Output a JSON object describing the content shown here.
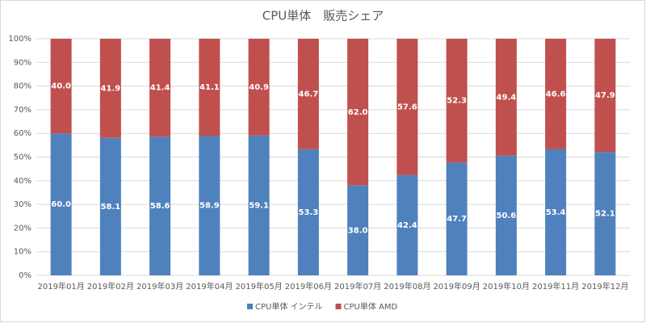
{
  "chart_data": {
    "type": "stacked_bar",
    "title": "CPU単体　販売シェア",
    "categories": [
      "2019年01月",
      "2019年02月",
      "2019年03月",
      "2019年04月",
      "2019年05月",
      "2019年06月",
      "2019年07月",
      "2019年08月",
      "2019年09月",
      "2019年10月",
      "2019年11月",
      "2019年12月"
    ],
    "series": [
      {
        "name": "CPU単体 インテル",
        "color": "#4f81bd",
        "values": [
          60.0,
          58.1,
          58.6,
          58.9,
          59.1,
          53.3,
          38.0,
          42.4,
          47.7,
          50.6,
          53.4,
          52.1
        ],
        "value_labels": [
          "60.0",
          "58.1",
          "58.6",
          "58.9",
          "59.1",
          "53.3",
          "38.0",
          "42.4",
          "47.7",
          "50.6",
          "53.4",
          "52.1"
        ]
      },
      {
        "name": "CPU単体 AMD",
        "color": "#c0504d",
        "values": [
          40.0,
          41.9,
          41.4,
          41.1,
          40.9,
          46.7,
          62.0,
          57.6,
          52.3,
          49.4,
          46.6,
          47.9
        ],
        "value_labels": [
          "40.0",
          "41.9",
          "41.4",
          "41.1",
          "40.9",
          "46.7",
          "62.0",
          "57.6",
          "52.3",
          "49.4",
          "46.6",
          "47.9"
        ]
      }
    ],
    "ylim": [
      0,
      100
    ],
    "yticks": [
      {
        "value": 0,
        "label": "0%"
      },
      {
        "value": 10,
        "label": "10%"
      },
      {
        "value": 20,
        "label": "20%"
      },
      {
        "value": 30,
        "label": "30%"
      },
      {
        "value": 40,
        "label": "40%"
      },
      {
        "value": 50,
        "label": "50%"
      },
      {
        "value": 60,
        "label": "60%"
      },
      {
        "value": 70,
        "label": "70%"
      },
      {
        "value": 80,
        "label": "80%"
      },
      {
        "value": 90,
        "label": "90%"
      },
      {
        "value": 100,
        "label": "100%"
      }
    ],
    "grid": true,
    "legend": "bottom"
  }
}
